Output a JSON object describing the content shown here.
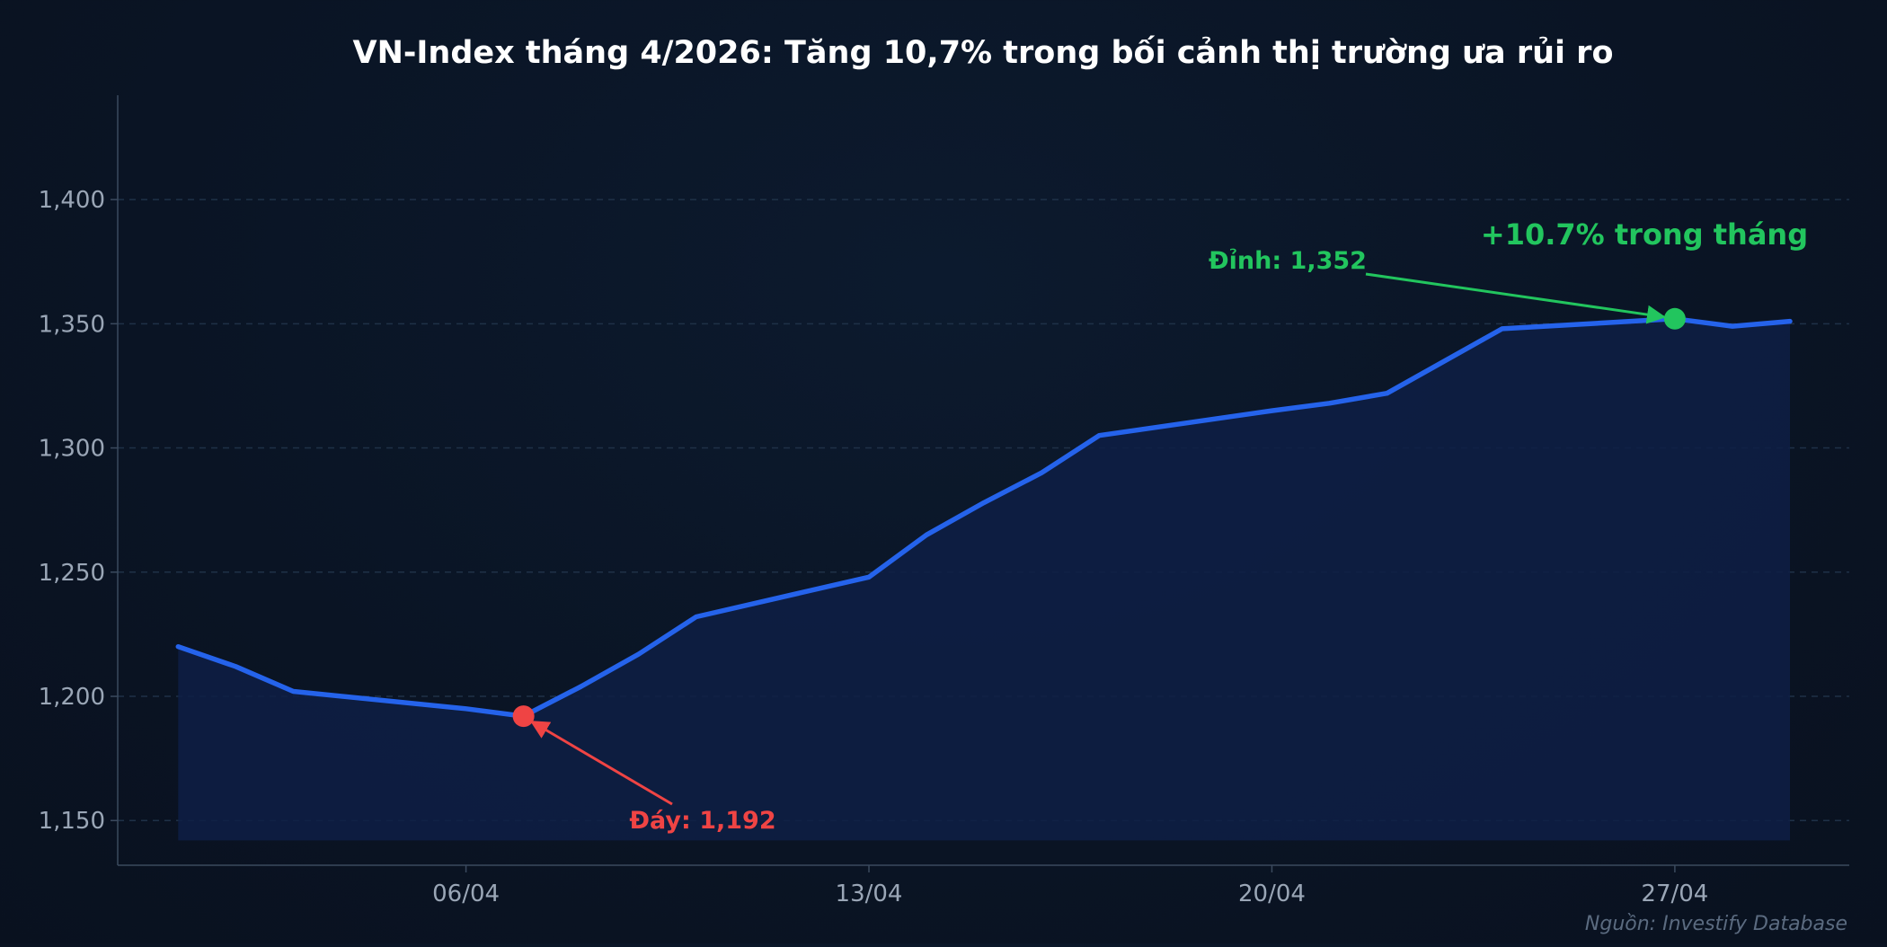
{
  "chart_data": {
    "type": "line",
    "title": "VN-Index tháng 4/2026: Tăng 10,7% trong bối cảnh thị trường ưa rủi ro",
    "xlabel": "",
    "ylabel": "",
    "ylim": [
      1132,
      1442
    ],
    "y_ticks": [
      1150,
      1200,
      1250,
      1300,
      1350,
      1400
    ],
    "y_tick_labels": [
      "1,150",
      "1,200",
      "1,250",
      "1,300",
      "1,350",
      "1,400"
    ],
    "x_tick_labels": [
      "06/04",
      "13/04",
      "20/04",
      "27/04"
    ],
    "x_tick_days": [
      6,
      13,
      20,
      27
    ],
    "grid": true,
    "series": [
      {
        "x": [
          1,
          2,
          3,
          6,
          7,
          8,
          9,
          10,
          13,
          14,
          15,
          16,
          17,
          20,
          21,
          22,
          23,
          24,
          27,
          28,
          29
        ],
        "values": [
          1220,
          1212,
          1202,
          1195,
          1192,
          1204,
          1217,
          1232,
          1248,
          1265,
          1278,
          1290,
          1305,
          1315,
          1318,
          1322,
          1335,
          1348,
          1352,
          1349,
          1351
        ],
        "color": "#2563eb"
      }
    ],
    "annotations": {
      "min": {
        "label": "Đáy: 1,192",
        "day": 7,
        "value": 1192,
        "color": "#ef4444"
      },
      "max": {
        "label": "Đỉnh: 1,352",
        "day": 27,
        "value": 1352,
        "color": "#22c55e"
      },
      "change": {
        "label": "+10.7% trong tháng",
        "color": "#22c55e"
      }
    },
    "source": "Nguồn: Investify Database"
  }
}
